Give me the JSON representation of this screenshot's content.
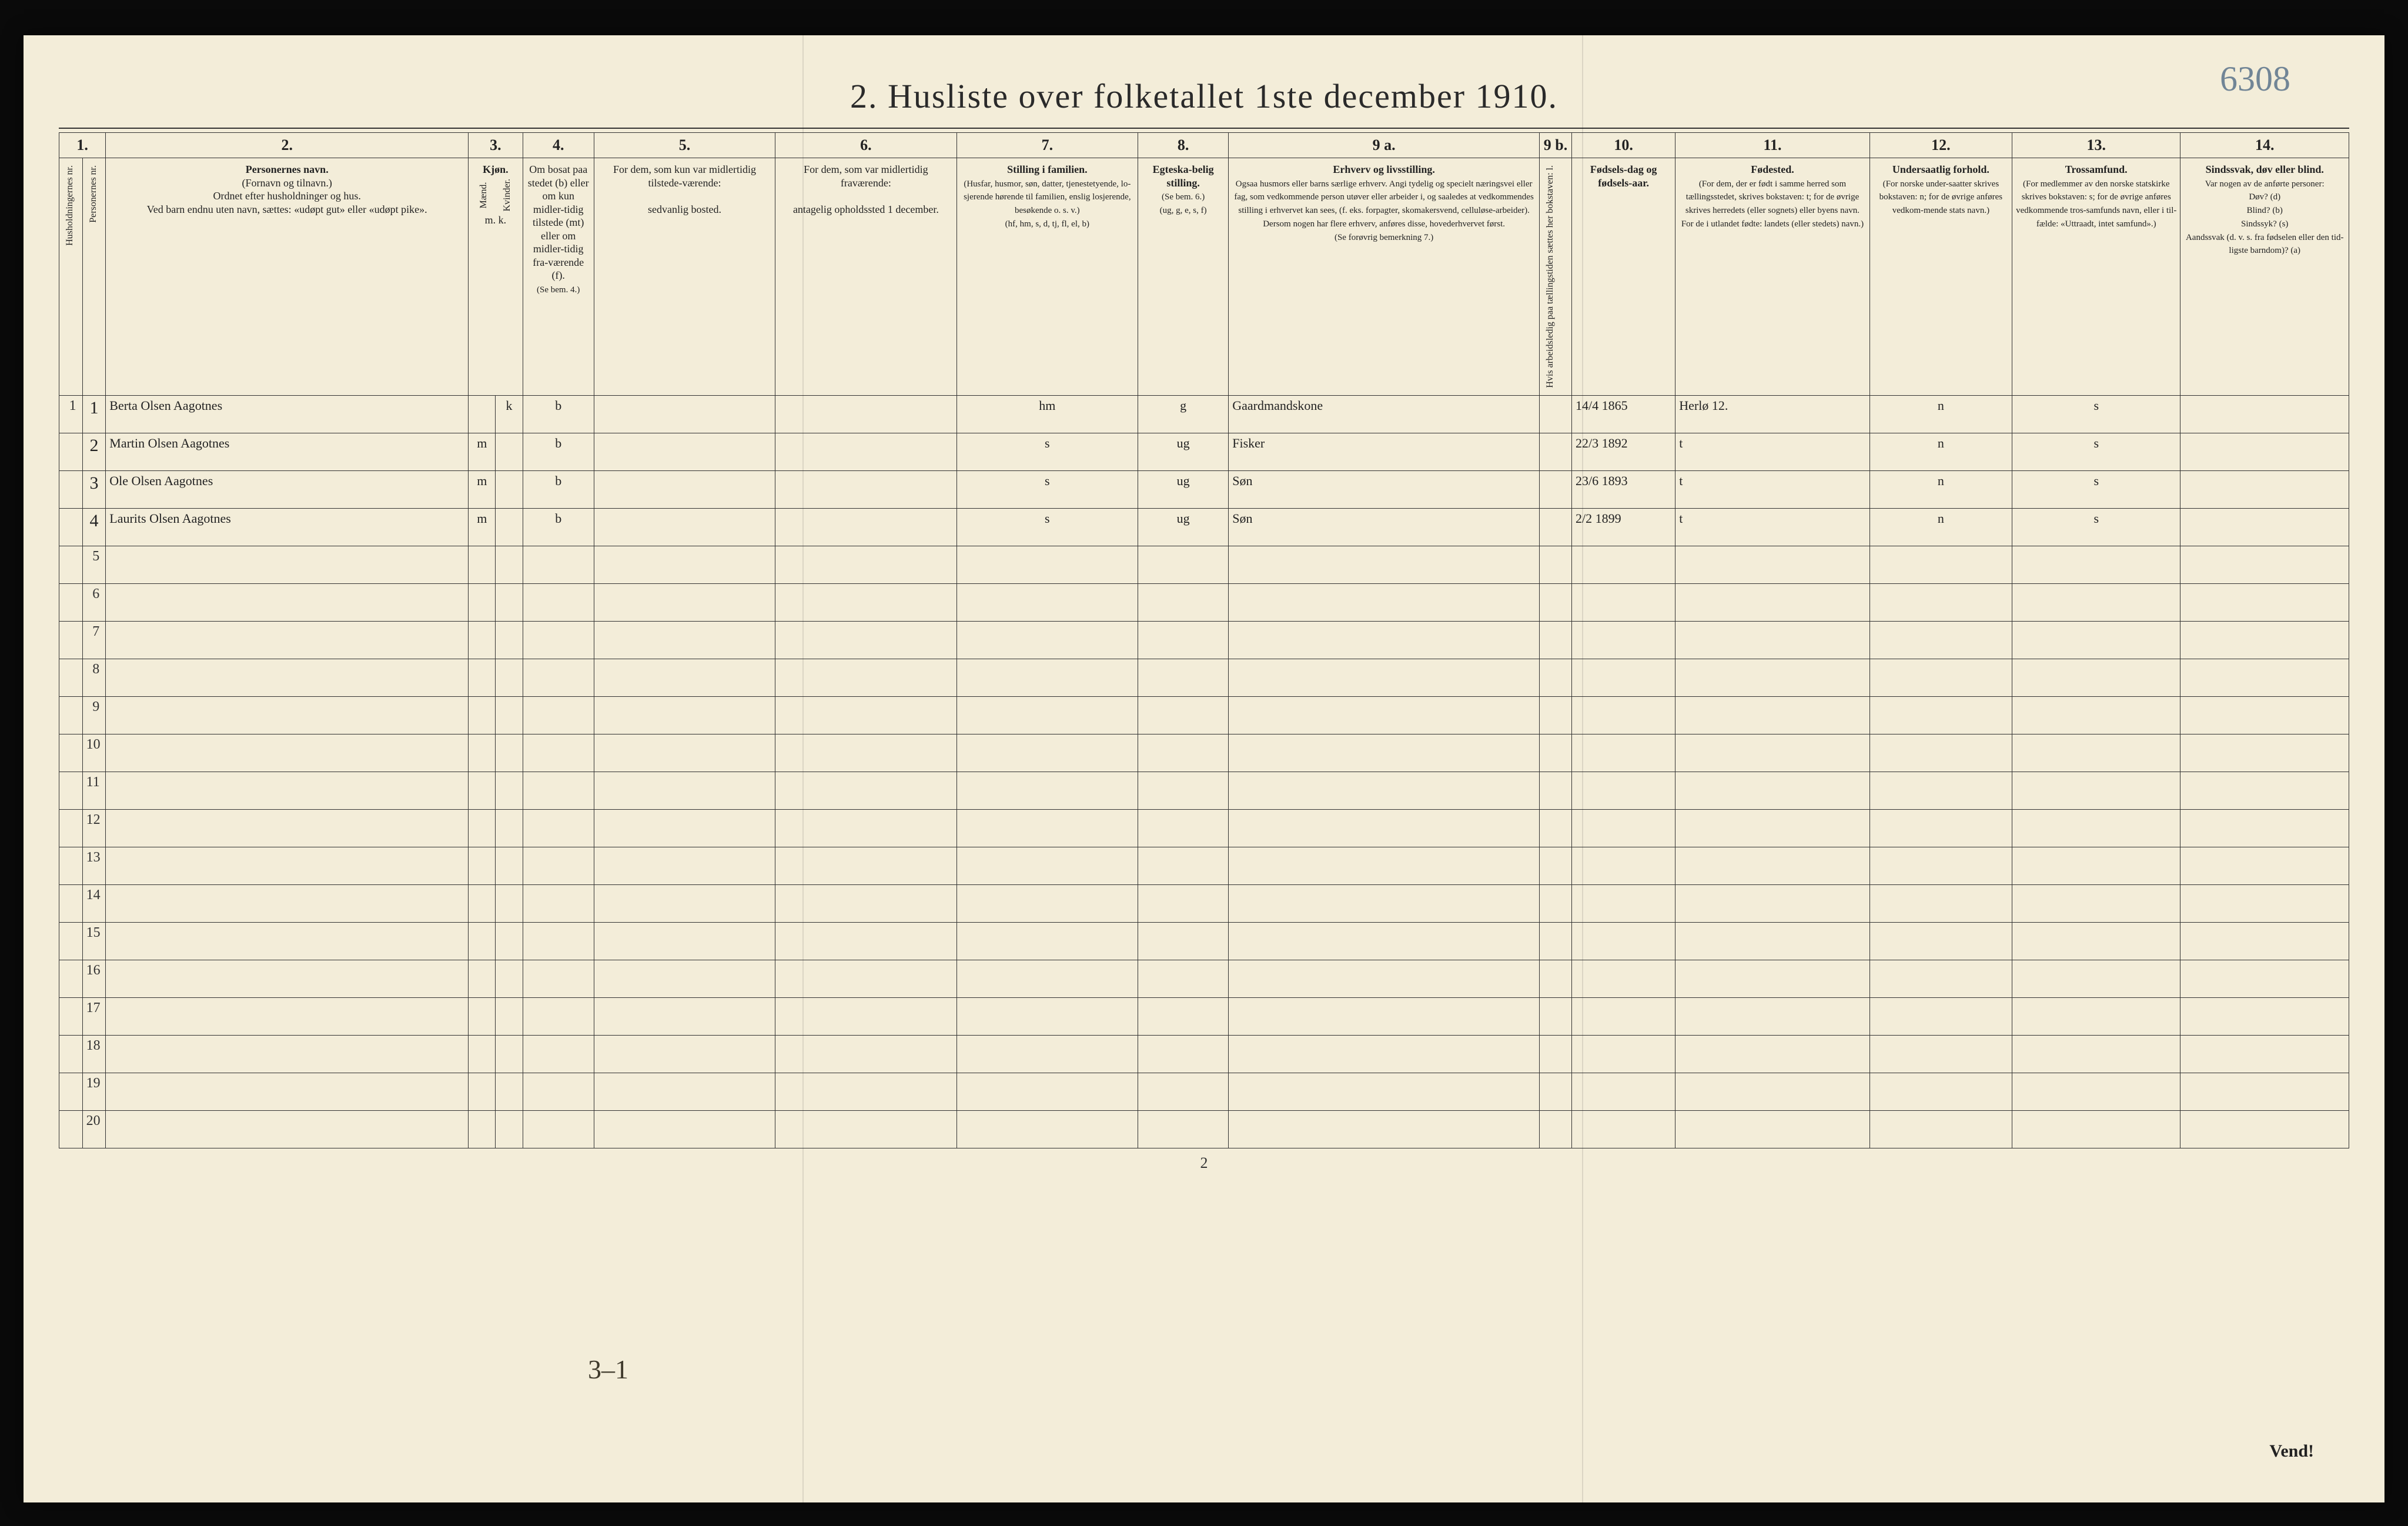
{
  "page": {
    "title": "2.  Husliste over folketallet 1ste december 1910.",
    "topRightNote": "6308",
    "footerPageNum": "2",
    "vend": "Vend!",
    "bottomAnnot": "3–1"
  },
  "columns": {
    "numHead": [
      "1.",
      "2.",
      "3.",
      "4.",
      "5.",
      "6.",
      "7.",
      "8.",
      "9 a.",
      "9 b.",
      "10.",
      "11.",
      "12.",
      "13.",
      "14."
    ],
    "c1vertA": "Husholdningernes nr.",
    "c1vertB": "Personernes nr.",
    "c2title": "Personernes navn.",
    "c2sub": "(Fornavn og tilnavn.)\nOrdnet efter husholdninger og hus.\nVed barn endnu uten navn, sættes: «udøpt gut» eller «udøpt pike».",
    "c3title": "Kjøn.",
    "c3a": "Mænd.",
    "c3b": "Kvinder.",
    "c3mk": "m.   k.",
    "c4title": "Om bosat paa stedet (b) eller om kun midler-tidig tilstede (mt) eller om midler-tidig fra-værende (f).",
    "c4sub": "(Se bem. 4.)",
    "c5title": "For dem, som kun var midlertidig tilstede-værende:",
    "c5sub": "sedvanlig bosted.",
    "c6title": "For dem, som var midlertidig fraværende:",
    "c6sub": "antagelig opholdssted 1 december.",
    "c7title": "Stilling i familien.",
    "c7sub": "(Husfar, husmor, søn, datter, tjenestetyende, lo-sjerende hørende til familien, enslig losjerende, besøkende o. s. v.)\n(hf, hm, s, d, tj, fl, el, b)",
    "c8title": "Egteska-belig stilling.",
    "c8sub": "(Se bem. 6.)\n(ug, g, e, s, f)",
    "c9atitle": "Erhverv og livsstilling.",
    "c9asub": "Ogsaa husmors eller barns særlige erhverv. Angi tydelig og specielt næringsvei eller fag, som vedkommende person utøver eller arbeider i, og saaledes at vedkommendes stilling i erhvervet kan sees, (f. eks. forpagter, skomakersvend, celluløse-arbeider). Dersom nogen har flere erhverv, anføres disse, hovederhvervet først.\n(Se forøvrig bemerkning 7.)",
    "c9bvert": "Hvis arbeidsledig paa tællingstiden sættes her bokstaven: l.",
    "c10title": "Fødsels-dag og fødsels-aar.",
    "c11title": "Fødested.",
    "c11sub": "(For dem, der er født i samme herred som tællingsstedet, skrives bokstaven: t; for de øvrige skrives herredets (eller sognets) eller byens navn. For de i utlandet fødte: landets (eller stedets) navn.)",
    "c12title": "Undersaatlig forhold.",
    "c12sub": "(For norske under-saatter skrives bokstaven: n; for de øvrige anføres vedkom-mende stats navn.)",
    "c13title": "Trossamfund.",
    "c13sub": "(For medlemmer av den norske statskirke skrives bokstaven: s; for de øvrige anføres vedkommende tros-samfunds navn, eller i til-fælde: «Uttraadt, intet samfund».)",
    "c14title": "Sindssvak, døv eller blind.",
    "c14sub": "Var nogen av de anførte personer:\nDøv?        (d)\nBlind?      (b)\nSindssyk?   (s)\nAandssvak (d. v. s. fra fødselen eller den tid-ligste barndom)?  (a)"
  },
  "rows": [
    {
      "hh": "1",
      "pn": "1",
      "name": "Berta Olsen Aagotnes",
      "m": "",
      "k": "k",
      "res": "b",
      "c5": "",
      "c6": "",
      "fam": "hm",
      "mar": "g",
      "occ": "Gaardmandskone",
      "l": "",
      "dob": "14/4 1865",
      "birthplace": "Herlø  12.",
      "nat": "n",
      "rel": "s",
      "c14": ""
    },
    {
      "hh": "",
      "pn": "2",
      "name": "Martin Olsen Aagotnes",
      "m": "m",
      "k": "",
      "res": "b",
      "c5": "",
      "c6": "",
      "fam": "s",
      "mar": "ug",
      "occ": "Fisker",
      "l": "",
      "dob": "22/3 1892",
      "birthplace": "t",
      "nat": "n",
      "rel": "s",
      "c14": ""
    },
    {
      "hh": "",
      "pn": "3",
      "name": "Ole Olsen Aagotnes",
      "m": "m",
      "k": "",
      "res": "b",
      "c5": "",
      "c6": "",
      "fam": "s",
      "mar": "ug",
      "occ": "Søn",
      "l": "",
      "dob": "23/6 1893",
      "birthplace": "t",
      "nat": "n",
      "rel": "s",
      "c14": ""
    },
    {
      "hh": "",
      "pn": "4",
      "name": "Laurits Olsen Aagotnes",
      "m": "m",
      "k": "",
      "res": "b",
      "c5": "",
      "c6": "",
      "fam": "s",
      "mar": "ug",
      "occ": "Søn",
      "l": "",
      "dob": "2/2 1899",
      "birthplace": "t",
      "nat": "n",
      "rel": "s",
      "c14": ""
    }
  ],
  "emptyRows": [
    "5",
    "6",
    "7",
    "8",
    "9",
    "10",
    "11",
    "12",
    "13",
    "14",
    "15",
    "16",
    "17",
    "18",
    "19",
    "20"
  ],
  "style": {
    "paperBg": "#f3edd9",
    "ink": "#3f3a2c",
    "lineColor": "#333333"
  }
}
